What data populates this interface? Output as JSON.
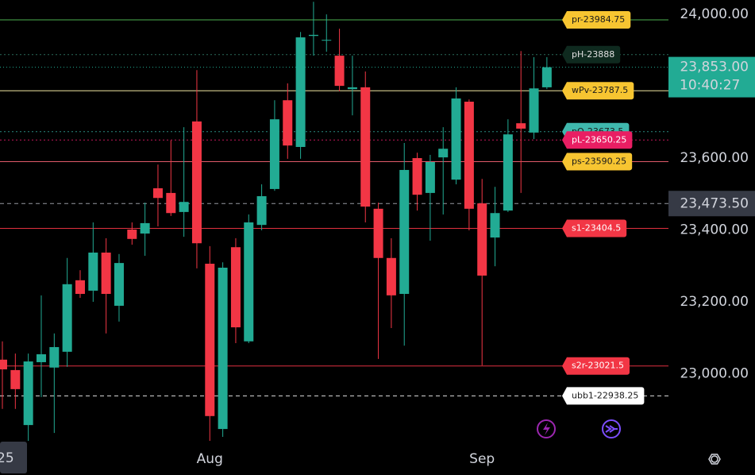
{
  "chart_data": {
    "type": "candlestick",
    "categories": [
      null,
      null,
      null,
      null,
      null,
      null,
      null,
      null,
      null,
      null,
      null,
      null,
      null,
      null,
      null,
      null,
      "Aug",
      null,
      null,
      null,
      null,
      null,
      null,
      null,
      null,
      null,
      null,
      null,
      null,
      null,
      null,
      null,
      null,
      null,
      null,
      null,
      null,
      "Sep",
      null,
      null,
      null,
      null,
      null
    ],
    "open": [
      23039,
      23010,
      22857,
      23032,
      23017,
      23061,
      23260,
      23231,
      23337,
      23189,
      23401,
      23390,
      23516,
      23503,
      23450,
      23702,
      23306,
      22846,
      23352,
      23090,
      23414,
      23514,
      23761,
      23631,
      23940,
      23927,
      23885,
      23792,
      23797,
      23459,
      23322,
      23222,
      23600,
      23503,
      23602,
      23540,
      23757,
      23474,
      23379,
      23454,
      23697,
      23671,
      23797
    ],
    "high": [
      23090,
      23056,
      23056,
      23218,
      23112,
      23322,
      23288,
      23421,
      23377,
      23333,
      23421,
      23476,
      23582,
      23649,
      23686,
      23845,
      23355,
      23310,
      23377,
      23443,
      23527,
      23761,
      23808,
      23951,
      24035,
      24000,
      23960,
      23885,
      23841,
      23476,
      23377,
      23642,
      23615,
      23609,
      23686,
      23797,
      23763,
      23542,
      23520,
      23708,
      23898,
      23881,
      23881
    ],
    "low": [
      22902,
      22902,
      22813,
      22935,
      22835,
      23019,
      23211,
      23200,
      23112,
      23145,
      23359,
      23328,
      23410,
      23439,
      23381,
      23293,
      22813,
      22824,
      23085,
      23085,
      23399,
      23509,
      23598,
      23598,
      23885,
      23896,
      23786,
      23719,
      23421,
      23041,
      23127,
      23078,
      23454,
      23370,
      23443,
      23527,
      23399,
      23023,
      23299,
      23450,
      23503,
      23653,
      23792
    ],
    "close": [
      23012,
      22957,
      23034,
      23054,
      23074,
      23249,
      23222,
      23337,
      23222,
      23308,
      23375,
      23419,
      23489,
      23447,
      23478,
      23363,
      22882,
      23295,
      23129,
      23421,
      23494,
      23708,
      23635,
      23936,
      23943,
      23929,
      23801,
      23797,
      23465,
      23322,
      23218,
      23567,
      23498,
      23589,
      23626,
      23766,
      23459,
      23273,
      23447,
      23666,
      23682,
      23794,
      23853
    ],
    "up_color": "#22ab94",
    "down_color": "#f23645",
    "ylim": [
      22802,
      24040
    ],
    "yticks": [
      {
        "value": 23000,
        "label": "23,000.00"
      },
      {
        "value": 23200,
        "label": "23,200.00"
      },
      {
        "value": 23400,
        "label": "23,400.00"
      },
      {
        "value": 23600,
        "label": "23,600.00"
      },
      {
        "value": 24000,
        "label": "24,000.00"
      }
    ],
    "levels": [
      {
        "label": "pr-23984.75",
        "value": 23984.75,
        "color": "#4caf50",
        "bg": "#f7c531",
        "fg": "#1a1a1a",
        "dash": "none"
      },
      {
        "label": "pH-23888",
        "value": 23888,
        "color": "#2a6b5a",
        "bg": "#0f2a1f",
        "fg": "#e0e0e0",
        "dash": "2 3"
      },
      {
        "label": "wPv-23787.5",
        "value": 23787.5,
        "color": "#f0e6a0",
        "bg": "#f7c531",
        "fg": "#1a1a1a",
        "dash": "none"
      },
      {
        "label": "pO-23673.5",
        "value": 23673.5,
        "color": "#2a8a80",
        "bg": "#3fb8ad",
        "fg": "#1a1a1a",
        "dash": "2 3"
      },
      {
        "label": "pL-23650.25",
        "value": 23650.25,
        "color": "#c2185b",
        "bg": "#e91e63",
        "fg": "#ffffff",
        "dash": "2 3"
      },
      {
        "label": "ps-23590.25",
        "value": 23590.25,
        "color": "#e05a6a",
        "bg": "#f7c531",
        "fg": "#1a1a1a",
        "dash": "none"
      },
      {
        "label": "s1-23404.5",
        "value": 23404.5,
        "color": "#e0303f",
        "bg": "#f23645",
        "fg": "#ffffff",
        "dash": "none"
      },
      {
        "label": "s2r-23021.5",
        "value": 23021.5,
        "color": "#e0303f",
        "bg": "#f23645",
        "fg": "#ffffff",
        "dash": "none"
      },
      {
        "label": "ubb1-22938.25",
        "value": 22938.25,
        "color": "#e0e0e0",
        "bg": "#ffffff",
        "fg": "#1a1a1a",
        "dash": "5 4"
      }
    ],
    "crosshair": {
      "value": 23473.5,
      "label": "23,473.50"
    },
    "last_price": {
      "value": 23853,
      "label": "23,853.00",
      "time": "10:40:27"
    },
    "x_crosshair_label": "25"
  }
}
